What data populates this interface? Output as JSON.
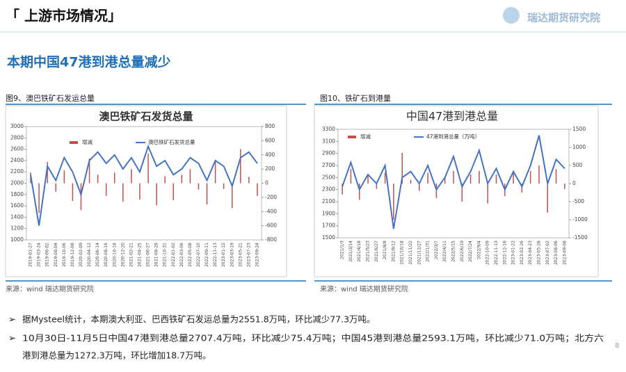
{
  "header": {
    "title": "「 上游市场情况」",
    "logo": "瑞达期货研究院",
    "subtitle": "本期中国47港到港总量减少",
    "page": "8"
  },
  "captions": [
    "图9、澳巴铁矿石发运总量",
    "图10、铁矿石到港量"
  ],
  "sources": [
    "来源：wind   瑞达期货研究院",
    "来源：wind   瑞达期货研究院"
  ],
  "bullets": [
    [
      "据Mysteel统计，本期澳大利亚、巴西铁矿石发运总量为2551.8万吨，环比减少77.3万吨。"
    ],
    [
      "10月30日-11月5日中国47港到港总量2707.4万吨，环比减少75.4万吨；中国45港到港总量2593.1万吨，环比减少71.0万吨；北方六",
      "港到港总量为1272.3万吨，环比增加18.7万吨。"
    ]
  ],
  "chart_data": [
    {
      "type": "bar-line",
      "title": "澳巴铁矿石发货总量",
      "categories": [
        "2019-01-27",
        "2019-03-24",
        "2019-06-02",
        "2019-08-04",
        "2019-10-06",
        "2019-12-08",
        "2020-02-09",
        "2020-04-12",
        "2020-06-14",
        "2020-08-16",
        "2020-10-18",
        "2020-12-20",
        "2021-02-21",
        "2021-04-25",
        "2021-06-27",
        "2021-08-29",
        "2021-10-31",
        "2022-01-02",
        "2022-03-06",
        "2022-05-08",
        "2022-07-10",
        "2022-09-11",
        "2022-11-13",
        "2023-01-15",
        "2023-03-19",
        "2023-05-21",
        "2023-07-23",
        "2023-09-24"
      ],
      "series": [
        {
          "name": "增减",
          "color": "#c0504d",
          "axis": "y2",
          "values": [
            150,
            -420,
            300,
            -120,
            180,
            -250,
            -380,
            350,
            120,
            -180,
            150,
            -260,
            200,
            -230,
            420,
            -310,
            100,
            -240,
            120,
            200,
            -90,
            -300,
            330,
            -80,
            -350,
            480,
            90,
            -180
          ]
        },
        {
          "name": "澳巴铁矿石发货总量",
          "color": "#4472c4",
          "values": [
            2150,
            1250,
            2300,
            2050,
            2450,
            2200,
            1800,
            2400,
            2550,
            2350,
            2500,
            2250,
            2450,
            2200,
            2650,
            2300,
            2400,
            2150,
            2250,
            2450,
            2350,
            2050,
            2400,
            2300,
            1950,
            2450,
            2550,
            2350
          ]
        }
      ],
      "ylim": [
        1000,
        3000
      ],
      "yticks": [
        1000,
        1200,
        1400,
        1600,
        1800,
        2000,
        2200,
        2400,
        2600,
        2800,
        3000
      ],
      "y2lim": [
        -800,
        800
      ],
      "y2ticks": [
        -800,
        -600,
        -400,
        -200,
        0,
        200,
        400,
        600,
        800
      ]
    },
    {
      "type": "bar-line",
      "title": "中国47港到港总量",
      "categories": [
        "2021/1/3",
        "2021/3/14",
        "2021/4/18",
        "2021/5/23",
        "2021/6/27",
        "2021/8/8",
        "2021/9/12",
        "2021/10/18",
        "2021/11/22",
        "2021/12/27",
        "2022/1/31",
        "2022/3/7",
        "2022/4/11",
        "2022/5/15",
        "2022/6/19",
        "2022/7/24",
        "2022/9/4",
        "2022-10-09",
        "2022-11-13",
        "2022-12-18",
        "2023-01-22",
        "2023-02-26",
        "2023-04-23",
        "2023-05-28",
        "2023-07-02",
        "2023-08-06",
        "2023-09-08"
      ],
      "series": [
        {
          "name": "增减",
          "color": "#c0504d",
          "axis": "y2",
          "values": [
            -300,
            400,
            -450,
            250,
            -150,
            300,
            -1000,
            850,
            100,
            -200,
            300,
            -400,
            200,
            350,
            -500,
            250,
            350,
            -550,
            250,
            -350,
            300,
            -250,
            350,
            500,
            -800,
            400,
            -150
          ]
        },
        {
          "name": "47港到港总量（万吨）",
          "color": "#4472c4",
          "values": [
            2350,
            2750,
            2300,
            2550,
            2400,
            2700,
            1650,
            2500,
            2600,
            2400,
            2700,
            2300,
            2500,
            2850,
            2350,
            2600,
            2950,
            2400,
            2650,
            2300,
            2600,
            2350,
            2700,
            3200,
            2400,
            2800,
            2650
          ]
        }
      ],
      "ylim": [
        1500,
        3300
      ],
      "yticks": [
        1500,
        1700,
        1900,
        2100,
        2300,
        2500,
        2700,
        2900,
        3100,
        3300
      ],
      "y2lim": [
        -1500,
        1500
      ],
      "y2ticks": [
        -1500,
        -1000,
        -500,
        0,
        500,
        1000,
        1500
      ]
    }
  ]
}
